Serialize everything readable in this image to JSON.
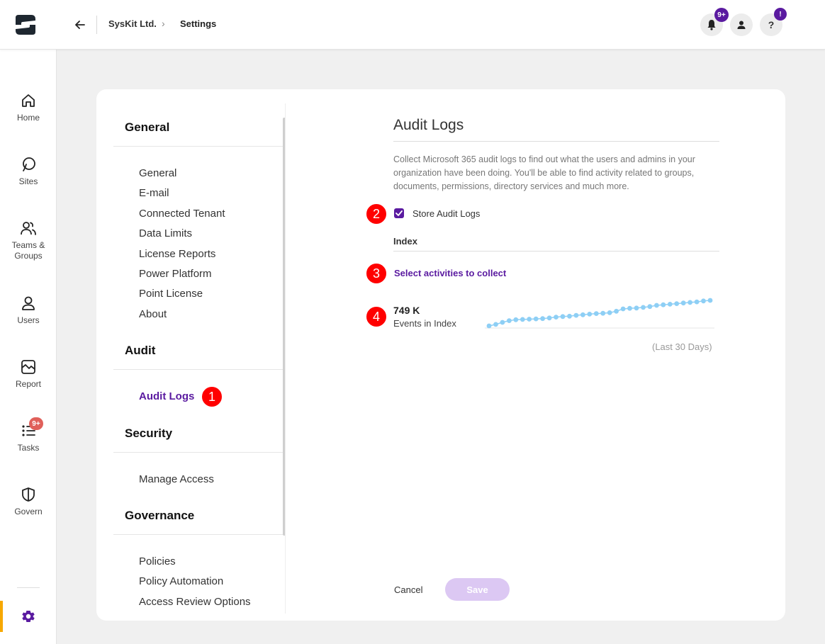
{
  "header": {
    "breadcrumb": [
      "SysKit Ltd.",
      "Settings"
    ],
    "breadcrumb_separator": "›",
    "notifications_badge": "9+",
    "help_badge": "!",
    "help_icon_text": "?"
  },
  "leftnav": {
    "items": [
      {
        "label": "Home",
        "icon": "home-icon"
      },
      {
        "label": "Sites",
        "icon": "sites-icon"
      },
      {
        "label": "Teams & Groups",
        "icon": "teams-groups-icon"
      },
      {
        "label": "Users",
        "icon": "user-icon"
      },
      {
        "label": "Report",
        "icon": "report-icon"
      },
      {
        "label": "Tasks",
        "icon": "tasks-icon",
        "badge": "9+"
      },
      {
        "label": "Govern",
        "icon": "shield-icon"
      }
    ],
    "settings_icon": "gear-icon"
  },
  "menu": {
    "sections": [
      {
        "title": "General",
        "links": [
          "General",
          "E-mail",
          "Connected Tenant",
          "Data Limits",
          "License Reports",
          "Power Platform",
          "Point License",
          "About"
        ]
      },
      {
        "title": "Audit",
        "links": [
          "Audit Logs"
        ]
      },
      {
        "title": "Security",
        "links": [
          "Manage Access"
        ]
      },
      {
        "title": "Governance",
        "links": [
          "Policies",
          "Policy Automation",
          "Access Review Options"
        ]
      }
    ],
    "active_link": "Audit Logs"
  },
  "content": {
    "title": "Audit Logs",
    "description": "Collect Microsoft 365 audit logs to find out what the users and admins in your organization have been doing. You'll be able to find activity related to groups, documents, permissions, directory services and much more.",
    "store_audit_logs_label": "Store Audit Logs",
    "store_audit_logs_checked": true,
    "index_title": "Index",
    "select_activities_label": "Select activities to collect",
    "events_value": "749 K",
    "events_label": "Events in Index",
    "spark_caption": "(Last 30 Days)",
    "cancel_label": "Cancel",
    "save_label": "Save"
  },
  "callouts": [
    "1",
    "2",
    "3",
    "4"
  ],
  "colors": {
    "accent": "#5a1aa0",
    "callout": "#ff0000",
    "sparkline": "#8ecff5",
    "nav_accent": "#f7a800"
  },
  "chart_data": {
    "type": "line",
    "title": "",
    "xlabel": "",
    "ylabel": "",
    "series": [
      {
        "values": [
          0.0,
          0.05,
          0.12,
          0.18,
          0.21,
          0.22,
          0.23,
          0.24,
          0.25,
          0.27,
          0.3,
          0.32,
          0.33,
          0.36,
          0.38,
          0.4,
          0.42,
          0.43,
          0.45,
          0.5,
          0.58,
          0.6,
          0.61,
          0.63,
          0.66,
          0.7,
          0.72,
          0.74,
          0.76,
          0.78,
          0.8,
          0.82,
          0.85,
          0.87
        ]
      }
    ]
  }
}
